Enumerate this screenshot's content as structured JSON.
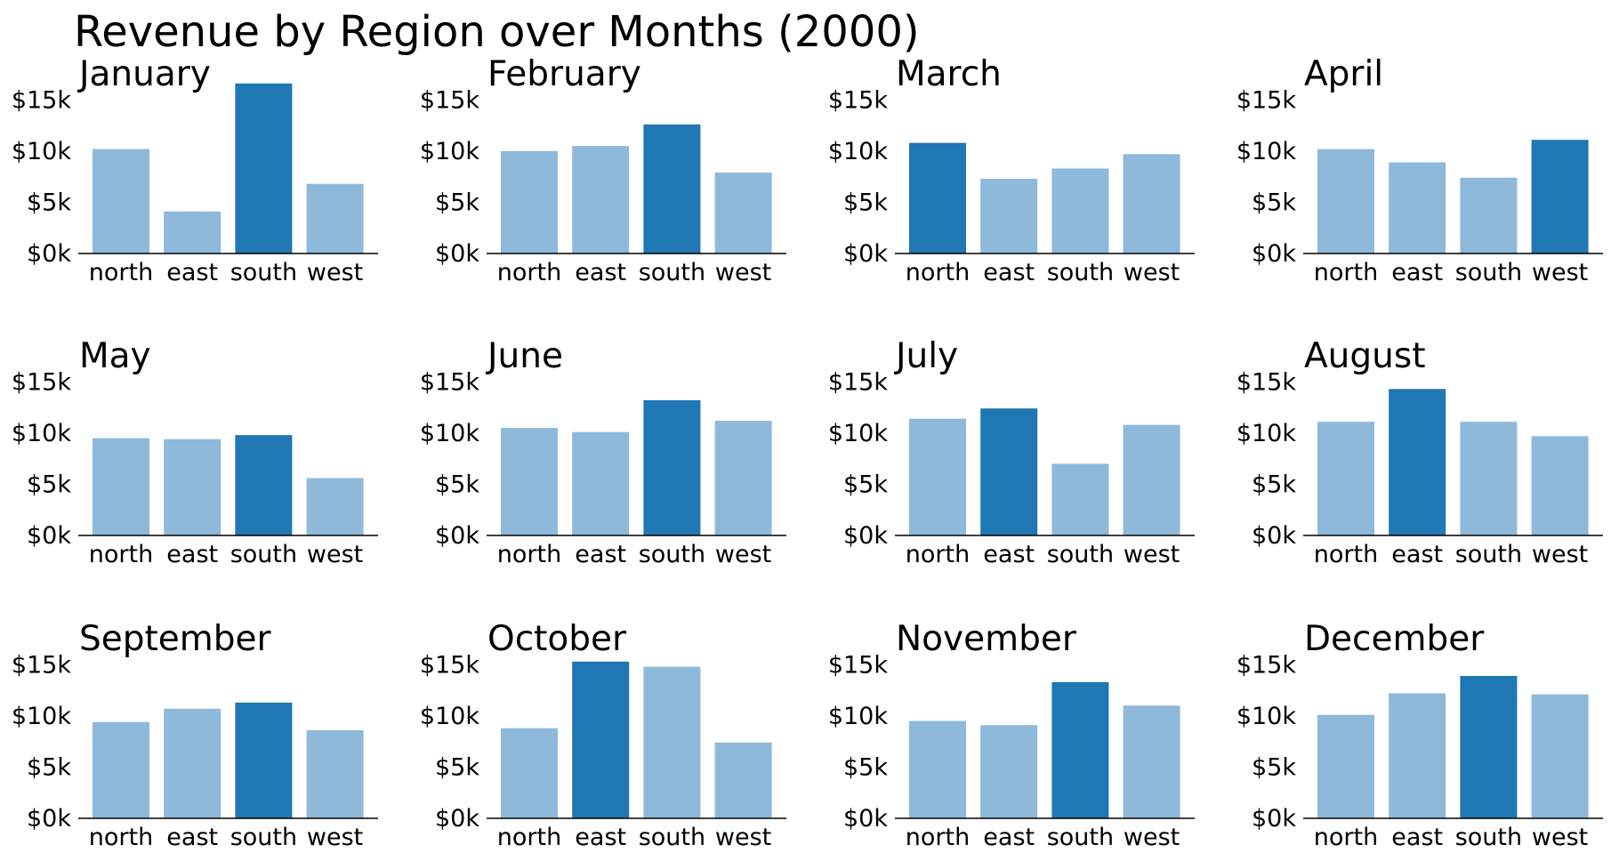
{
  "title": "Revenue by Region over Months (2000)",
  "colors": {
    "highlight": "#1f77b4",
    "normal": "#8fb9da",
    "axis": "#000000"
  },
  "chart_data": {
    "type": "bar",
    "layout": "small-multiples",
    "categories": [
      "north",
      "east",
      "south",
      "west"
    ],
    "ylim": [
      0,
      16500
    ],
    "yticks": [
      0,
      5000,
      10000,
      15000
    ],
    "ytick_labels": [
      "$0k",
      "$5k",
      "$10k",
      "$15k"
    ],
    "panels": [
      {
        "title": "January",
        "values": [
          10200,
          4100,
          16600,
          6800
        ]
      },
      {
        "title": "February",
        "values": [
          10000,
          10500,
          12600,
          7900
        ]
      },
      {
        "title": "March",
        "values": [
          10800,
          7300,
          8300,
          9700
        ]
      },
      {
        "title": "April",
        "values": [
          10200,
          8900,
          7400,
          11100
        ]
      },
      {
        "title": "May",
        "values": [
          9500,
          9400,
          9800,
          5600
        ]
      },
      {
        "title": "June",
        "values": [
          10500,
          10100,
          13200,
          11200
        ]
      },
      {
        "title": "July",
        "values": [
          11400,
          12400,
          7000,
          10800
        ]
      },
      {
        "title": "August",
        "values": [
          11100,
          14300,
          11100,
          9700
        ]
      },
      {
        "title": "September",
        "values": [
          9400,
          10700,
          11300,
          8600
        ]
      },
      {
        "title": "October",
        "values": [
          8800,
          15300,
          14800,
          7400
        ]
      },
      {
        "title": "November",
        "values": [
          9500,
          9100,
          13300,
          11000
        ]
      },
      {
        "title": "December",
        "values": [
          10100,
          12200,
          13900,
          12100
        ]
      }
    ]
  }
}
